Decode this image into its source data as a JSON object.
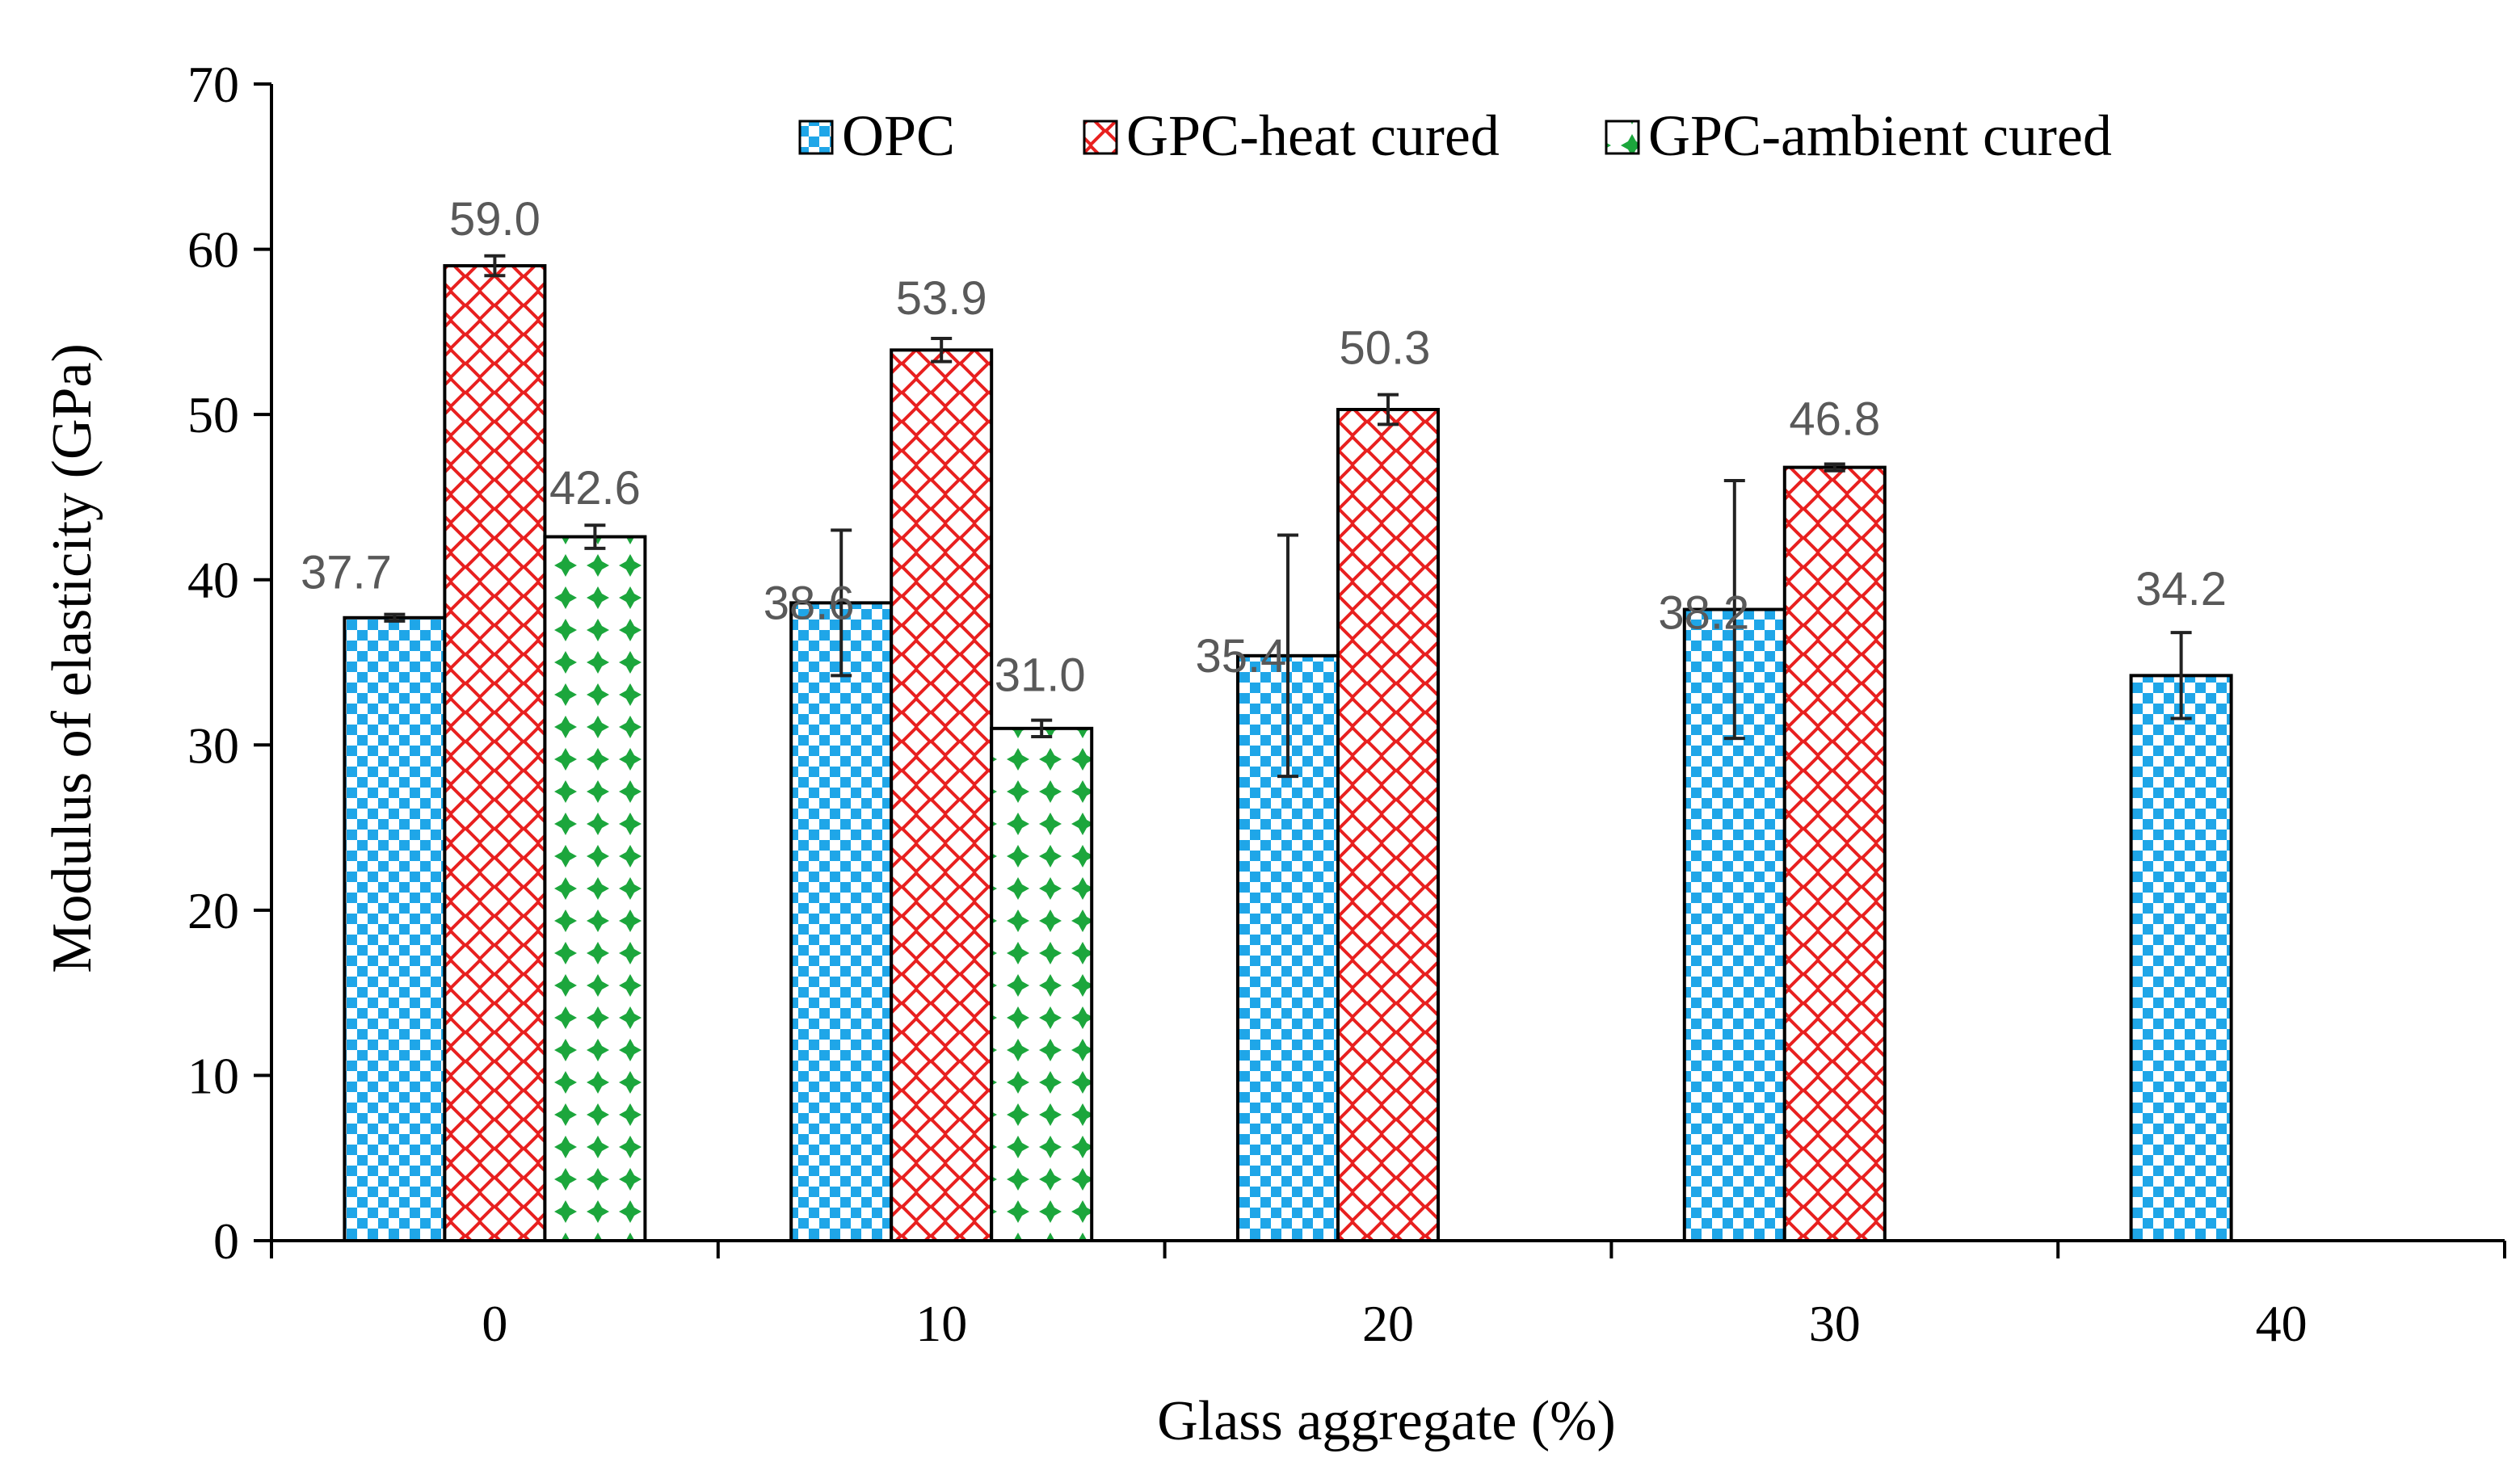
{
  "chart_data": {
    "type": "bar",
    "title": "",
    "xlabel": "Glass aggregate (%)",
    "ylabel": "Modulus of elasticity (GPa)",
    "ylim": [
      0,
      70
    ],
    "yticks": [
      0,
      10,
      20,
      30,
      40,
      50,
      60,
      70
    ],
    "grid": false,
    "legend_position": "top",
    "categories": [
      "0",
      "10",
      "20",
      "30",
      "40"
    ],
    "series": [
      {
        "name": "OPC",
        "values": [
          37.7,
          38.6,
          35.4,
          38.2,
          34.2
        ],
        "labels": [
          "37.7",
          "38.6",
          "35.4",
          "38.2",
          "34.2"
        ],
        "errors": [
          0.2,
          4.4,
          7.3,
          7.8,
          2.6
        ],
        "color": "#1fa6e8",
        "pattern": "checker"
      },
      {
        "name": "GPC-heat cured",
        "values": [
          59.0,
          53.9,
          50.3,
          46.8,
          null
        ],
        "labels": [
          "59.0",
          "53.9",
          "50.3",
          "46.8",
          null
        ],
        "errors": [
          0.6,
          0.7,
          0.9,
          0.2,
          null
        ],
        "color": "#e8201f",
        "pattern": "diamond-lattice"
      },
      {
        "name": "GPC-ambient cured",
        "values": [
          42.6,
          31.0,
          null,
          null,
          null
        ],
        "labels": [
          "42.6",
          "31.0",
          null,
          null,
          null
        ],
        "errors": [
          0.7,
          0.5,
          null,
          null,
          null
        ],
        "color": "#1ca63c",
        "pattern": "dots"
      }
    ]
  }
}
